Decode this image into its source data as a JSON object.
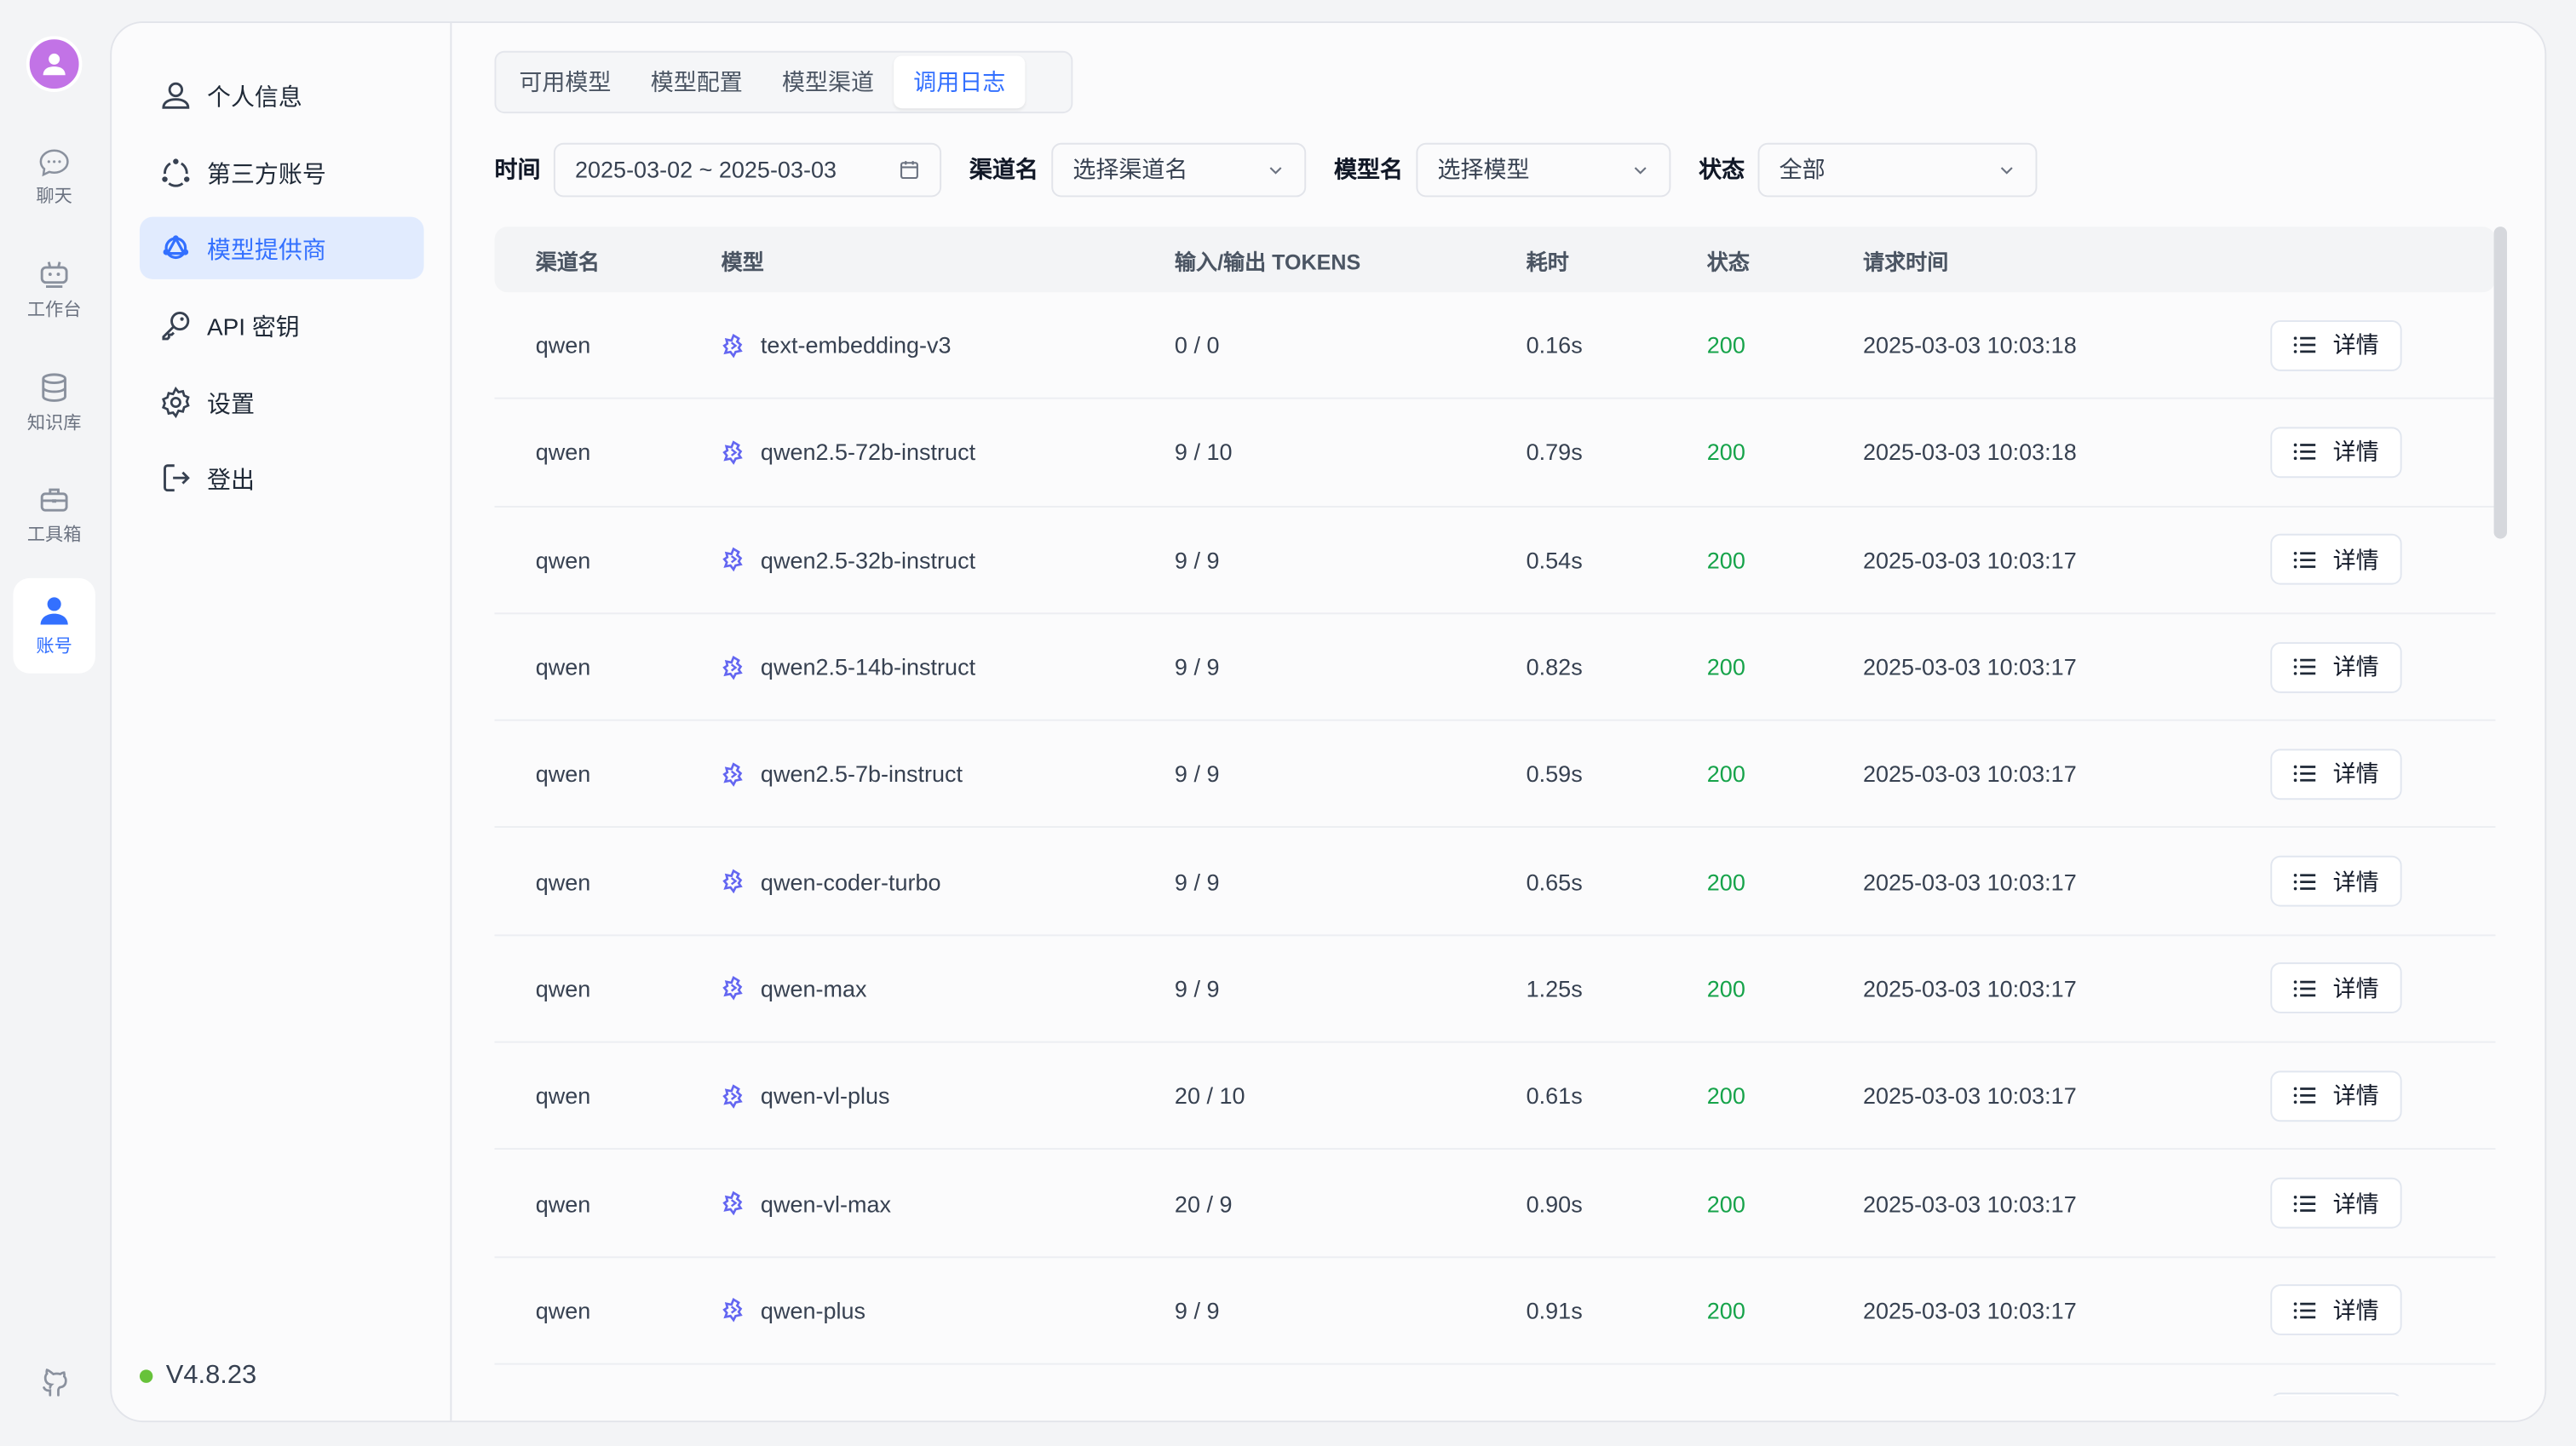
{
  "nav": {
    "items": [
      {
        "label": "聊天",
        "icon": "chat-icon"
      },
      {
        "label": "工作台",
        "icon": "robot-icon"
      },
      {
        "label": "知识库",
        "icon": "database-icon"
      },
      {
        "label": "工具箱",
        "icon": "toolbox-icon"
      },
      {
        "label": "账号",
        "icon": "user-icon",
        "active": true
      }
    ]
  },
  "account_menu": {
    "items": [
      {
        "label": "个人信息",
        "icon": "user-icon"
      },
      {
        "label": "第三方账号",
        "icon": "share-icon"
      },
      {
        "label": "模型提供商",
        "icon": "model-icon",
        "active": true
      },
      {
        "label": "API 密钥",
        "icon": "key-icon"
      },
      {
        "label": "设置",
        "icon": "gear-icon"
      },
      {
        "label": "登出",
        "icon": "logout-icon"
      }
    ],
    "version": "V4.8.23"
  },
  "tabs": [
    {
      "label": "可用模型"
    },
    {
      "label": "模型配置"
    },
    {
      "label": "模型渠道"
    },
    {
      "label": "调用日志",
      "active": true
    }
  ],
  "filters": {
    "time_label": "时间",
    "time_value": "2025-03-02 ~ 2025-03-03",
    "channel_label": "渠道名",
    "channel_placeholder": "选择渠道名",
    "model_label": "模型名",
    "model_placeholder": "选择模型",
    "status_label": "状态",
    "status_value": "全部"
  },
  "table": {
    "headers": [
      "渠道名",
      "模型",
      "输入/输出 TOKENS",
      "耗时",
      "状态",
      "请求时间"
    ],
    "detail_label": "详情",
    "rows": [
      {
        "channel": "qwen",
        "model": "text-embedding-v3",
        "tokens": "0 / 0",
        "duration": "0.16s",
        "status": "200",
        "time": "2025-03-03 10:03:18"
      },
      {
        "channel": "qwen",
        "model": "qwen2.5-72b-instruct",
        "tokens": "9 / 10",
        "duration": "0.79s",
        "status": "200",
        "time": "2025-03-03 10:03:18"
      },
      {
        "channel": "qwen",
        "model": "qwen2.5-32b-instruct",
        "tokens": "9 / 9",
        "duration": "0.54s",
        "status": "200",
        "time": "2025-03-03 10:03:17"
      },
      {
        "channel": "qwen",
        "model": "qwen2.5-14b-instruct",
        "tokens": "9 / 9",
        "duration": "0.82s",
        "status": "200",
        "time": "2025-03-03 10:03:17"
      },
      {
        "channel": "qwen",
        "model": "qwen2.5-7b-instruct",
        "tokens": "9 / 9",
        "duration": "0.59s",
        "status": "200",
        "time": "2025-03-03 10:03:17"
      },
      {
        "channel": "qwen",
        "model": "qwen-coder-turbo",
        "tokens": "9 / 9",
        "duration": "0.65s",
        "status": "200",
        "time": "2025-03-03 10:03:17"
      },
      {
        "channel": "qwen",
        "model": "qwen-max",
        "tokens": "9 / 9",
        "duration": "1.25s",
        "status": "200",
        "time": "2025-03-03 10:03:17"
      },
      {
        "channel": "qwen",
        "model": "qwen-vl-plus",
        "tokens": "20 / 10",
        "duration": "0.61s",
        "status": "200",
        "time": "2025-03-03 10:03:17"
      },
      {
        "channel": "qwen",
        "model": "qwen-vl-max",
        "tokens": "20 / 9",
        "duration": "0.90s",
        "status": "200",
        "time": "2025-03-03 10:03:17"
      },
      {
        "channel": "qwen",
        "model": "qwen-plus",
        "tokens": "9 / 9",
        "duration": "0.91s",
        "status": "200",
        "time": "2025-03-03 10:03:17"
      },
      {
        "channel": "",
        "model": "",
        "tokens": "",
        "duration": "",
        "status": "",
        "time": ""
      }
    ]
  },
  "colors": {
    "accent": "#3370ff",
    "success": "#16a34a",
    "avatar": "#c273e6",
    "online": "#67c23a"
  }
}
